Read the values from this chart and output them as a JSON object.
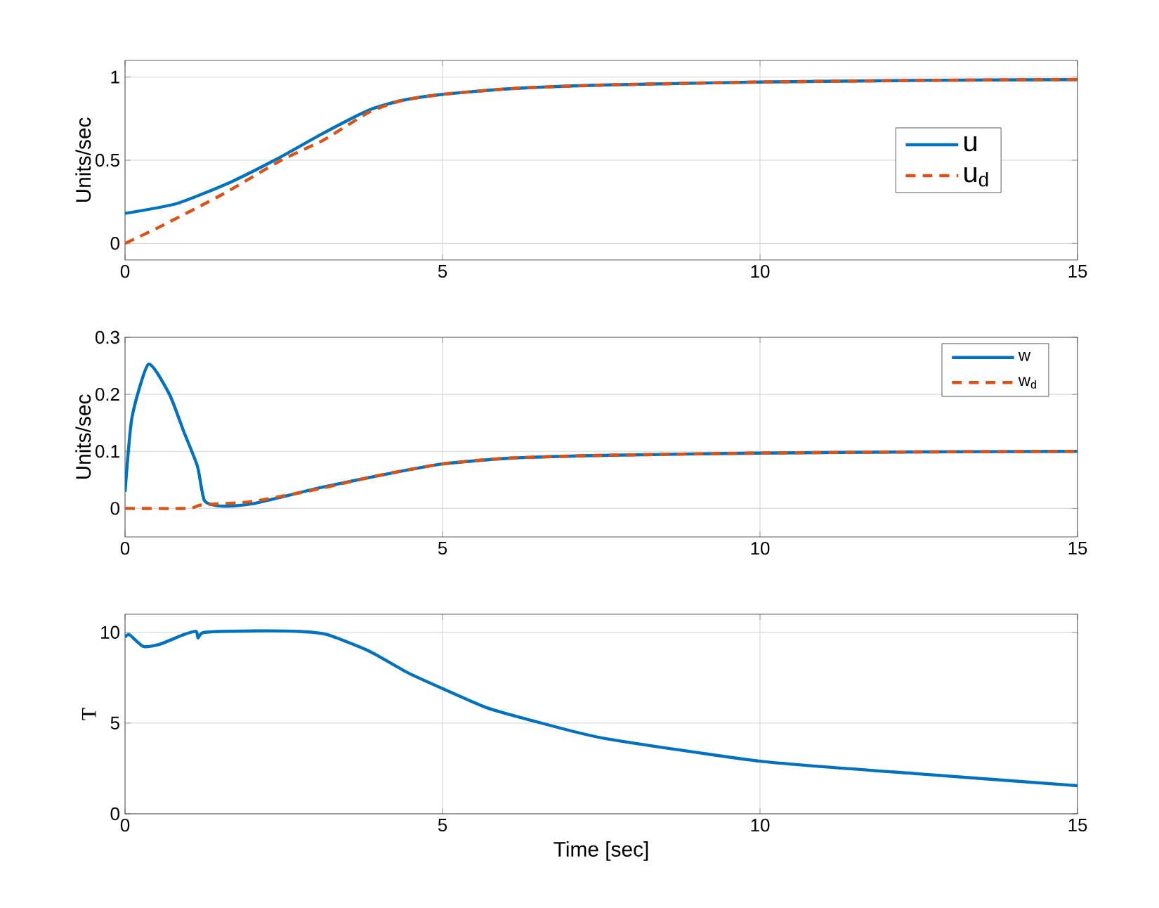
{
  "chart_data": [
    {
      "type": "line",
      "ylabel": "Units/sec",
      "xlim": [
        0,
        15
      ],
      "ylim": [
        -0.1,
        1.1
      ],
      "xticks": [
        0,
        5,
        10,
        15
      ],
      "yticks": [
        0,
        0.5,
        1
      ],
      "grid": true,
      "legend": "right",
      "series": [
        {
          "name": "u",
          "color": "#0072bd",
          "line_style": "solid",
          "x": [
            0,
            0.82,
            1.65,
            2.39,
            3.12,
            3.85,
            4.37,
            5,
            6.06,
            7.53,
            10,
            12.5,
            15
          ],
          "values": [
            0.18,
            0.24,
            0.366,
            0.507,
            0.662,
            0.803,
            0.86,
            0.896,
            0.93,
            0.952,
            0.97,
            0.98,
            0.985
          ]
        },
        {
          "name": "u$_{d}$",
          "color": "#d95319",
          "line_style": "dashed",
          "x": [
            0,
            0.55,
            1.54,
            2.46,
            3.12,
            3.85,
            4.37,
            5,
            6.06,
            7.53,
            10,
            12.5,
            15
          ],
          "values": [
            0,
            0.1,
            0.296,
            0.5,
            0.62,
            0.79,
            0.86,
            0.896,
            0.93,
            0.952,
            0.97,
            0.98,
            0.985
          ]
        }
      ]
    },
    {
      "type": "line",
      "ylabel": "Units/sec",
      "xlim": [
        0,
        15
      ],
      "ylim": [
        -0.05,
        0.3
      ],
      "xticks": [
        0,
        5,
        10,
        15
      ],
      "yticks": [
        0,
        0.1,
        0.2,
        0.3
      ],
      "grid": true,
      "legend": "top right",
      "series": [
        {
          "name": "w",
          "color": "#0072bd",
          "line_style": "solid",
          "x": [
            0,
            0.11,
            0.37,
            0.7,
            0.92,
            1.14,
            1.25,
            1.5,
            2.0,
            3.1,
            4.2,
            5,
            6.06,
            7.5,
            10,
            12.5,
            15
          ],
          "values": [
            0.029,
            0.16,
            0.253,
            0.2,
            0.136,
            0.074,
            0.014,
            0.004,
            0.008,
            0.037,
            0.062,
            0.078,
            0.088,
            0.093,
            0.097,
            0.099,
            0.1
          ]
        },
        {
          "name": "w$_{d}$",
          "color": "#d95319",
          "line_style": "dashed",
          "x": [
            0,
            1,
            1.2,
            2,
            3,
            4,
            5,
            6,
            7.5,
            10,
            12.5,
            15
          ],
          "values": [
            0,
            0,
            0.006,
            0.012,
            0.033,
            0.058,
            0.078,
            0.088,
            0.093,
            0.097,
            0.099,
            0.1
          ]
        }
      ]
    },
    {
      "type": "line",
      "ylabel": "T",
      "xlabel": "Time [sec]",
      "xlim": [
        0,
        15
      ],
      "ylim": [
        0,
        11
      ],
      "xticks": [
        0,
        5,
        10,
        15
      ],
      "yticks": [
        0,
        5,
        10
      ],
      "grid": true,
      "series": [
        {
          "color": "#0072bd",
          "line_style": "solid",
          "x": [
            0,
            0.07,
            0.29,
            0.55,
            0.92,
            1.12,
            1.15,
            1.25,
            2.02,
            2.75,
            3.19,
            3.85,
            4.44,
            5,
            5.69,
            6.42,
            7.53,
            10,
            12.5,
            15
          ],
          "values": [
            9.74,
            9.87,
            9.22,
            9.35,
            9.87,
            10.05,
            9.69,
            10,
            10.08,
            10.05,
            9.87,
            8.96,
            7.8,
            6.9,
            5.85,
            5.13,
            4.17,
            2.9,
            2.2,
            1.55
          ]
        }
      ]
    }
  ]
}
